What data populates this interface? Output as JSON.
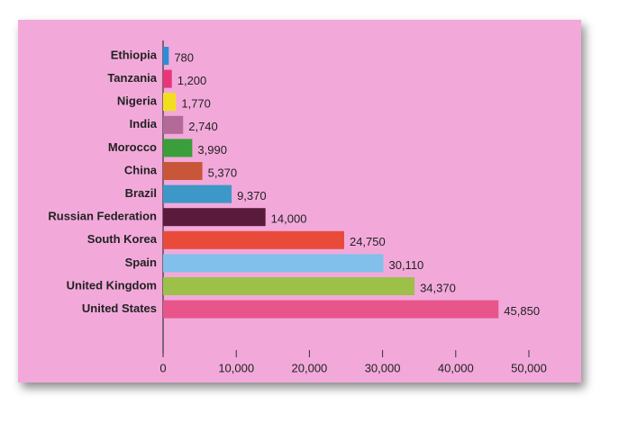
{
  "chart_data": {
    "type": "bar",
    "orientation": "horizontal",
    "categories": [
      "Ethiopia",
      "Tanzania",
      "Nigeria",
      "India",
      "Morocco",
      "China",
      "Brazil",
      "Russian Federation",
      "South Korea",
      "Spain",
      "United Kingdom",
      "United States"
    ],
    "values": [
      780,
      1200,
      1770,
      2740,
      3990,
      5370,
      9370,
      14000,
      24750,
      30110,
      34370,
      45850
    ],
    "value_labels": [
      "780",
      "1,200",
      "1,770",
      "2,740",
      "3,990",
      "5,370",
      "9,370",
      "14,000",
      "24,750",
      "30,110",
      "34,370",
      "45,850"
    ],
    "colors": [
      "#2a8fd8",
      "#e8357a",
      "#f2de1e",
      "#b36a98",
      "#3a9e3a",
      "#c8573a",
      "#3d98c8",
      "#5a1a3c",
      "#e84b3a",
      "#80c0ea",
      "#9cc048",
      "#e8558a"
    ],
    "xlim": [
      0,
      50000
    ],
    "xticks": [
      0,
      {
        "value": 10000,
        "label": "10,000"
      },
      {
        "value": 20000,
        "label": "20,000"
      },
      {
        "value": 30000,
        "label": "30,000"
      },
      {
        "value": 40000,
        "label": "40,000"
      },
      {
        "value": 50000,
        "label": "50,000"
      }
    ]
  }
}
